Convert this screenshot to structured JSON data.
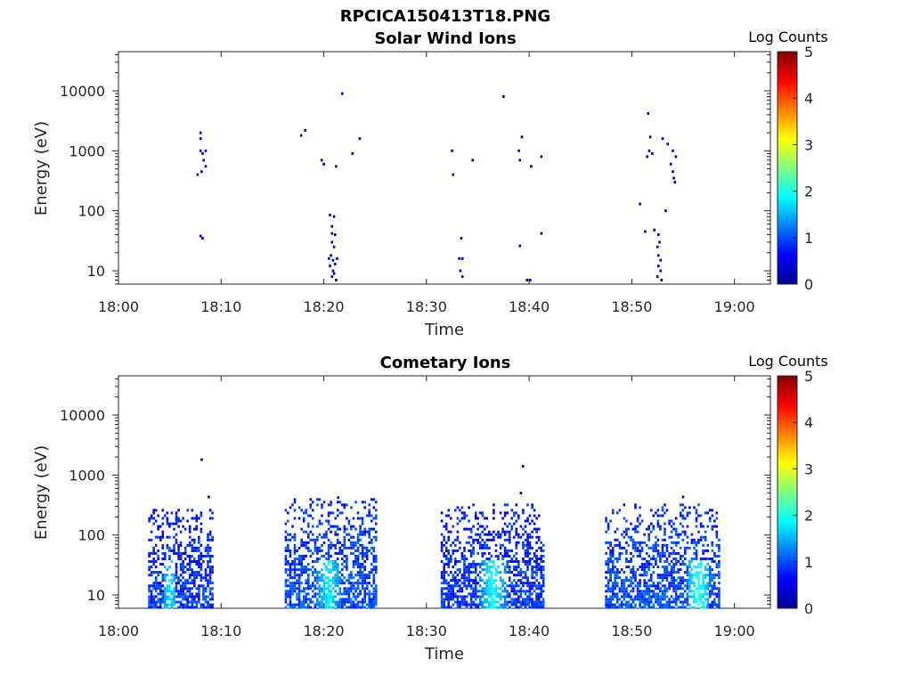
{
  "figure": {
    "title": "RPCICA150413T18.PNG"
  },
  "colorbar_stops": [
    "#00008f",
    "#0000ff",
    "#0080ff",
    "#00ffff",
    "#80ff80",
    "#ffff00",
    "#ff8000",
    "#ff0000",
    "#800000"
  ],
  "chart_data": [
    {
      "type": "heatmap",
      "title": "Solar Wind Ions",
      "xlabel": "Time",
      "ylabel": "Energy (eV)",
      "x_ticks": [
        "18:00",
        "18:10",
        "18:20",
        "18:30",
        "18:40",
        "18:50",
        "19:00"
      ],
      "y_ticks": [
        "10",
        "100",
        "1000",
        "10000"
      ],
      "y_scale": "log",
      "ylim": [
        6,
        45000
      ],
      "xlim_minutes": [
        0,
        63.5
      ],
      "colorbar": {
        "label": "Log Counts",
        "ticks": [
          "0",
          "1",
          "2",
          "3",
          "4",
          "5"
        ],
        "range": [
          0,
          5
        ]
      },
      "cells": [
        [
          8.0,
          2000,
          0.6
        ],
        [
          8.0,
          1600,
          0.6
        ],
        [
          8.0,
          1000,
          0.7
        ],
        [
          8.2,
          900,
          0.7
        ],
        [
          8.5,
          1000,
          0.5
        ],
        [
          8.3,
          700,
          0.5
        ],
        [
          8.5,
          550,
          0.5
        ],
        [
          7.7,
          400,
          0.5
        ],
        [
          8.1,
          450,
          0.5
        ],
        [
          8.0,
          38,
          0.4
        ],
        [
          8.2,
          35,
          0.4
        ],
        [
          17.8,
          1800,
          0.3
        ],
        [
          18.2,
          2200,
          0.3
        ],
        [
          19.8,
          700,
          0.3
        ],
        [
          20.0,
          600,
          0.3
        ],
        [
          21.2,
          550,
          0.3
        ],
        [
          21.8,
          9000,
          0.3
        ],
        [
          22.8,
          900,
          0.3
        ],
        [
          23.5,
          1600,
          0.3
        ],
        [
          20.6,
          85,
          0.3
        ],
        [
          21.0,
          80,
          0.3
        ],
        [
          20.8,
          55,
          0.3
        ],
        [
          20.8,
          42,
          0.3
        ],
        [
          21.1,
          40,
          0.3
        ],
        [
          20.8,
          30,
          0.3
        ],
        [
          21.0,
          25,
          0.3
        ],
        [
          20.7,
          18,
          0.3
        ],
        [
          20.9,
          15,
          0.3
        ],
        [
          21.1,
          13,
          0.3
        ],
        [
          20.6,
          12,
          0.3
        ],
        [
          20.9,
          10,
          0.3
        ],
        [
          21.0,
          9,
          0.3
        ],
        [
          20.8,
          8,
          0.3
        ],
        [
          21.2,
          7,
          0.3
        ],
        [
          20.5,
          16,
          0.3
        ],
        [
          21.3,
          16,
          0.3
        ],
        [
          32.5,
          1000,
          0.3
        ],
        [
          32.6,
          400,
          0.3
        ],
        [
          34.5,
          700,
          0.3
        ],
        [
          33.4,
          35,
          0.3
        ],
        [
          33.2,
          16,
          0.3
        ],
        [
          33.5,
          16,
          0.3
        ],
        [
          33.3,
          10,
          0.3
        ],
        [
          33.5,
          8,
          0.3
        ],
        [
          37.5,
          8000,
          0.3
        ],
        [
          39.0,
          1000,
          0.4
        ],
        [
          39.1,
          700,
          0.4
        ],
        [
          39.3,
          1700,
          0.3
        ],
        [
          40.2,
          550,
          0.3
        ],
        [
          41.2,
          800,
          0.3
        ],
        [
          39.1,
          26,
          0.3
        ],
        [
          41.2,
          42,
          0.3
        ],
        [
          39.8,
          7,
          0.3
        ],
        [
          40.1,
          7,
          0.3
        ],
        [
          51.6,
          4200,
          0.3
        ],
        [
          51.8,
          1700,
          0.3
        ],
        [
          51.7,
          1000,
          0.5
        ],
        [
          51.5,
          800,
          0.5
        ],
        [
          52.0,
          900,
          0.4
        ],
        [
          53.0,
          1600,
          0.3
        ],
        [
          53.5,
          1300,
          0.3
        ],
        [
          54.0,
          1000,
          0.4
        ],
        [
          54.3,
          800,
          0.3
        ],
        [
          53.8,
          600,
          0.3
        ],
        [
          54.0,
          450,
          0.3
        ],
        [
          54.1,
          350,
          0.3
        ],
        [
          54.2,
          300,
          0.3
        ],
        [
          50.8,
          130,
          0.3
        ],
        [
          53.3,
          100,
          0.3
        ],
        [
          51.3,
          45,
          0.3
        ],
        [
          52.2,
          48,
          0.3
        ],
        [
          52.6,
          40,
          0.3
        ],
        [
          52.7,
          30,
          0.3
        ],
        [
          52.5,
          25,
          0.3
        ],
        [
          52.6,
          18,
          0.3
        ],
        [
          52.8,
          15,
          0.3
        ],
        [
          52.6,
          12,
          0.3
        ],
        [
          52.8,
          10,
          0.3
        ],
        [
          52.5,
          8,
          0.3
        ],
        [
          52.9,
          7,
          0.3
        ]
      ]
    },
    {
      "type": "heatmap",
      "title": "Cometary Ions",
      "xlabel": "Time",
      "ylabel": "Energy (eV)",
      "x_ticks": [
        "18:00",
        "18:10",
        "18:20",
        "18:30",
        "18:40",
        "18:50",
        "19:00"
      ],
      "y_ticks": [
        "10",
        "100",
        "1000",
        "10000"
      ],
      "y_scale": "log",
      "ylim": [
        6,
        45000
      ],
      "xlim_minutes": [
        0,
        63.5
      ],
      "colorbar": {
        "label": "Log Counts",
        "ticks": [
          "0",
          "1",
          "2",
          "3",
          "4",
          "5"
        ],
        "range": [
          0,
          5
        ]
      },
      "bands": [
        {
          "t0": 3.0,
          "t1": 9.3,
          "e_top": 280,
          "base": 0.6,
          "hot_t": 5.0,
          "hot_w": 0.6,
          "hot_v": 1.6
        },
        {
          "t0": 16.3,
          "t1": 25.3,
          "e_top": 400,
          "base": 0.7,
          "hot_t": 20.5,
          "hot_w": 1.2,
          "hot_v": 1.7
        },
        {
          "t0": 31.5,
          "t1": 41.5,
          "e_top": 350,
          "base": 0.6,
          "hot_t": 36.5,
          "hot_w": 1.4,
          "hot_v": 1.8
        },
        {
          "t0": 47.5,
          "t1": 58.5,
          "e_top": 320,
          "base": 0.7,
          "hot_t": 56.5,
          "hot_w": 1.0,
          "hot_v": 1.9
        }
      ],
      "cells": [
        [
          8.1,
          1800,
          0.4
        ],
        [
          39.4,
          1400,
          0.3
        ],
        [
          39.2,
          500,
          0.4
        ],
        [
          55.0,
          430,
          0.3
        ],
        [
          8.8,
          430,
          0.4
        ],
        [
          21.4,
          420,
          0.3
        ]
      ]
    }
  ]
}
